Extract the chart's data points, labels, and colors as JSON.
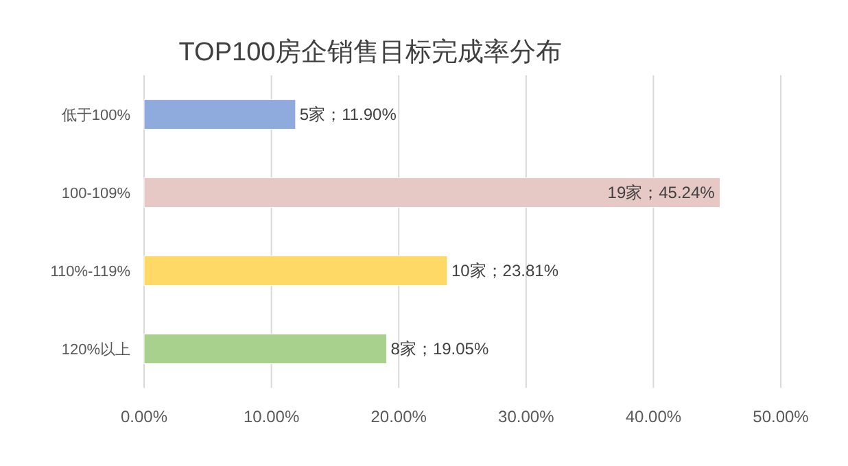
{
  "chart_data": {
    "type": "bar",
    "orientation": "horizontal",
    "title": "TOP100房企销售目标完成率分布",
    "categories": [
      "低于100%",
      "100-109%",
      "110%-119%",
      "120%以上"
    ],
    "values": [
      11.9,
      45.24,
      23.81,
      19.05
    ],
    "colors": [
      "#8faadc",
      "#e6c9c5",
      "#ffd966",
      "#a9d18e"
    ],
    "value_labels": [
      "5家；11.90%",
      "19家；45.24%",
      "10家；23.81%",
      "8家；19.05%"
    ],
    "xlim": [
      0,
      50
    ],
    "xticks": [
      {
        "value": 0,
        "label": "0.00%"
      },
      {
        "value": 10,
        "label": "10.00%"
      },
      {
        "value": 20,
        "label": "20.00%"
      },
      {
        "value": 30,
        "label": "30.00%"
      },
      {
        "value": 40,
        "label": "40.00%"
      },
      {
        "value": 50,
        "label": "50.00%"
      }
    ],
    "grid": "x"
  }
}
